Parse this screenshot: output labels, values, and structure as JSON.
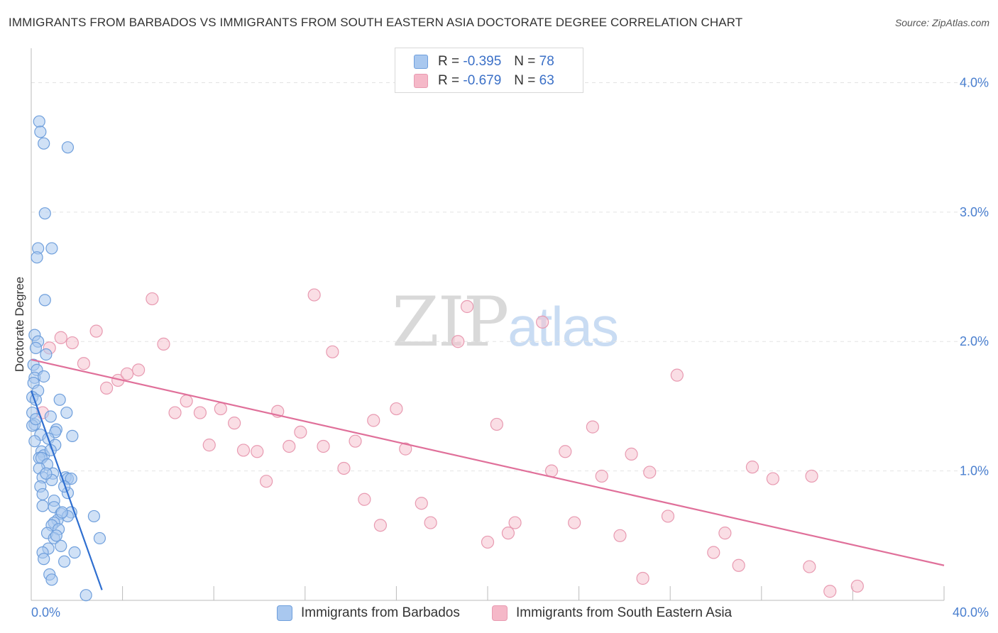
{
  "header": {
    "title": "IMMIGRANTS FROM BARBADOS VS IMMIGRANTS FROM SOUTH EASTERN ASIA DOCTORATE DEGREE CORRELATION CHART",
    "source": "Source: ZipAtlas.com"
  },
  "watermark": {
    "zip": "ZIP",
    "atlas": "atlas"
  },
  "legend": {
    "rows": [
      {
        "r_label": "R = ",
        "r_value": "-0.395",
        "n_label": "N = ",
        "n_value": "78",
        "color": "#a9c8ef"
      },
      {
        "r_label": "R = ",
        "r_value": "-0.679",
        "n_label": "N = ",
        "n_value": "63",
        "color": "#f5b8c8"
      }
    ]
  },
  "bottom_legend": {
    "series1": "Immigrants from Barbados",
    "series2": "Immigrants from South Eastern Asia"
  },
  "colors": {
    "blue_fill": "#aac8ee",
    "blue_stroke": "#6f9fdc",
    "blue_line": "#2f6fd0",
    "pink_fill": "#f6c2d0",
    "pink_stroke": "#e89ab1",
    "pink_line": "#e0709a",
    "tick_text": "#4a7fcf",
    "grid": "#e3e3e3"
  },
  "chart_data": {
    "type": "scatter",
    "title": "IMMIGRANTS FROM BARBADOS VS IMMIGRANTS FROM SOUTH EASTERN ASIA DOCTORATE DEGREE CORRELATION CHART",
    "xlabel": "",
    "ylabel": "Doctorate Degree",
    "xlim": [
      0,
      40
    ],
    "ylim": [
      0,
      4.2
    ],
    "x_tick_labels": [
      "0.0%",
      "40.0%"
    ],
    "y_ticks": [
      1.0,
      2.0,
      3.0,
      4.0
    ],
    "y_tick_labels": [
      "1.0%",
      "2.0%",
      "3.0%",
      "4.0%"
    ],
    "grid": true,
    "legend_position": "top-center",
    "series": [
      {
        "name": "Immigrants from Barbados",
        "r": -0.395,
        "n": 78,
        "trend": {
          "x": [
            0.0,
            3.1
          ],
          "y": [
            1.62,
            0.08
          ]
        },
        "points": [
          [
            0.35,
            3.7
          ],
          [
            0.4,
            3.62
          ],
          [
            0.55,
            3.53
          ],
          [
            1.6,
            3.5
          ],
          [
            0.6,
            2.99
          ],
          [
            0.3,
            2.72
          ],
          [
            0.9,
            2.72
          ],
          [
            0.25,
            2.65
          ],
          [
            0.6,
            2.32
          ],
          [
            0.15,
            2.05
          ],
          [
            0.3,
            2.0
          ],
          [
            0.2,
            1.95
          ],
          [
            0.65,
            1.9
          ],
          [
            0.1,
            1.82
          ],
          [
            0.25,
            1.78
          ],
          [
            0.15,
            1.72
          ],
          [
            0.55,
            1.73
          ],
          [
            0.1,
            1.68
          ],
          [
            0.3,
            1.62
          ],
          [
            0.05,
            1.57
          ],
          [
            0.2,
            1.55
          ],
          [
            1.25,
            1.55
          ],
          [
            0.05,
            1.45
          ],
          [
            0.85,
            1.42
          ],
          [
            1.55,
            1.45
          ],
          [
            0.15,
            1.36
          ],
          [
            0.05,
            1.35
          ],
          [
            1.1,
            1.32
          ],
          [
            1.05,
            1.3
          ],
          [
            0.4,
            1.28
          ],
          [
            1.8,
            1.27
          ],
          [
            0.75,
            1.25
          ],
          [
            0.15,
            1.23
          ],
          [
            1.05,
            1.2
          ],
          [
            0.45,
            1.15
          ],
          [
            0.55,
            1.12
          ],
          [
            0.35,
            1.1
          ],
          [
            0.45,
            1.1
          ],
          [
            0.7,
            1.05
          ],
          [
            0.35,
            1.02
          ],
          [
            0.95,
            0.98
          ],
          [
            0.5,
            0.95
          ],
          [
            1.5,
            0.95
          ],
          [
            1.6,
            0.94
          ],
          [
            0.9,
            0.93
          ],
          [
            1.75,
            0.94
          ],
          [
            0.4,
            0.88
          ],
          [
            1.6,
            0.83
          ],
          [
            0.5,
            0.82
          ],
          [
            1.0,
            0.77
          ],
          [
            0.5,
            0.73
          ],
          [
            1.0,
            0.72
          ],
          [
            1.75,
            0.68
          ],
          [
            1.3,
            0.67
          ],
          [
            1.6,
            0.65
          ],
          [
            2.75,
            0.65
          ],
          [
            1.15,
            0.62
          ],
          [
            1.0,
            0.6
          ],
          [
            0.9,
            0.58
          ],
          [
            1.2,
            0.55
          ],
          [
            0.7,
            0.52
          ],
          [
            1.0,
            0.48
          ],
          [
            1.1,
            0.5
          ],
          [
            3.0,
            0.48
          ],
          [
            1.3,
            0.42
          ],
          [
            0.75,
            0.4
          ],
          [
            0.5,
            0.37
          ],
          [
            1.9,
            0.37
          ],
          [
            0.55,
            0.32
          ],
          [
            1.45,
            0.3
          ],
          [
            0.8,
            0.2
          ],
          [
            0.9,
            0.16
          ],
          [
            2.4,
            0.04
          ],
          [
            0.65,
            0.98
          ],
          [
            1.35,
            0.68
          ],
          [
            0.2,
            1.4
          ],
          [
            0.85,
            1.16
          ],
          [
            1.45,
            0.88
          ]
        ]
      },
      {
        "name": "Immigrants from South Eastern Asia",
        "r": -0.679,
        "n": 63,
        "trend": {
          "x": [
            0.0,
            40.0
          ],
          "y": [
            1.86,
            0.27
          ]
        },
        "points": [
          [
            1.3,
            2.03
          ],
          [
            1.8,
            1.99
          ],
          [
            0.8,
            1.95
          ],
          [
            2.3,
            1.83
          ],
          [
            2.85,
            2.08
          ],
          [
            3.3,
            1.64
          ],
          [
            3.8,
            1.7
          ],
          [
            4.2,
            1.75
          ],
          [
            4.7,
            1.78
          ],
          [
            5.3,
            2.33
          ],
          [
            5.8,
            1.98
          ],
          [
            6.3,
            1.45
          ],
          [
            6.8,
            1.54
          ],
          [
            7.4,
            1.45
          ],
          [
            7.8,
            1.2
          ],
          [
            8.3,
            1.48
          ],
          [
            8.9,
            1.37
          ],
          [
            9.3,
            1.16
          ],
          [
            9.9,
            1.15
          ],
          [
            10.3,
            0.92
          ],
          [
            10.8,
            1.46
          ],
          [
            11.3,
            1.19
          ],
          [
            11.8,
            1.3
          ],
          [
            12.4,
            2.36
          ],
          [
            12.8,
            1.19
          ],
          [
            13.2,
            1.92
          ],
          [
            13.7,
            1.02
          ],
          [
            14.2,
            1.23
          ],
          [
            14.6,
            0.78
          ],
          [
            15.0,
            1.39
          ],
          [
            15.3,
            0.58
          ],
          [
            16.0,
            1.48
          ],
          [
            16.4,
            1.17
          ],
          [
            17.1,
            0.75
          ],
          [
            17.5,
            0.6
          ],
          [
            18.7,
            2.0
          ],
          [
            19.1,
            2.27
          ],
          [
            20.0,
            0.45
          ],
          [
            20.4,
            1.36
          ],
          [
            20.9,
            0.52
          ],
          [
            21.2,
            0.6
          ],
          [
            22.4,
            2.15
          ],
          [
            22.8,
            1.0
          ],
          [
            23.4,
            1.15
          ],
          [
            23.8,
            0.6
          ],
          [
            24.6,
            1.34
          ],
          [
            25.0,
            0.96
          ],
          [
            25.8,
            0.5
          ],
          [
            26.3,
            1.13
          ],
          [
            26.8,
            0.17
          ],
          [
            27.1,
            0.99
          ],
          [
            27.9,
            0.65
          ],
          [
            28.3,
            1.74
          ],
          [
            29.9,
            0.37
          ],
          [
            30.4,
            0.52
          ],
          [
            31.0,
            0.27
          ],
          [
            31.6,
            1.03
          ],
          [
            32.5,
            0.94
          ],
          [
            34.1,
            0.26
          ],
          [
            34.2,
            0.96
          ],
          [
            35.0,
            0.07
          ],
          [
            36.2,
            0.11
          ],
          [
            0.5,
            1.45
          ]
        ]
      }
    ]
  }
}
